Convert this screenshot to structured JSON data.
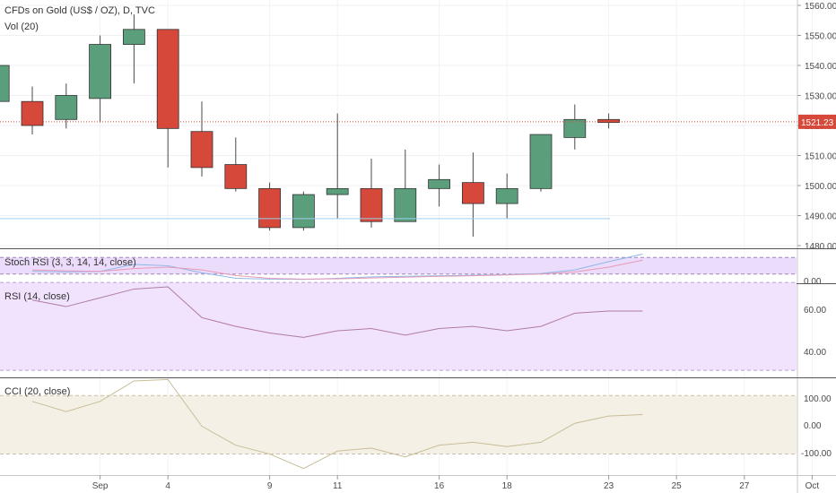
{
  "header": {
    "symbol_line": "CFDs on Gold (US$ / OZ), D, TVC",
    "volume_label": "Vol (20)"
  },
  "colors": {
    "up": "#5a9e7b",
    "down": "#d5483a",
    "stoch_bg": "#ecdcfb",
    "rsi_bg": "#f1e3fd",
    "cci_bg": "#f5f0e6",
    "price_line": "#d5483a",
    "rsi_line": "#b07aa8",
    "cci_line": "#c8bd98",
    "stoch_k": "#8fb8e8",
    "stoch_d": "#e79ab8"
  },
  "chart_data": [
    {
      "type": "candlestick",
      "title": "CFDs on Gold (US$ / OZ), D, TVC",
      "ylim": [
        1480,
        1562
      ],
      "y_ticks": [
        "1560.00",
        "1550.00",
        "1540.00",
        "1530.00",
        "1520.00",
        "1510.00",
        "1500.00",
        "1490.00",
        "1480.00"
      ],
      "last_price_label": "1521.23",
      "last_price": 1521.23,
      "support_level": 1489,
      "x_ticks": [
        {
          "label": "Sep",
          "index": 2
        },
        {
          "label": "4",
          "index": 4
        },
        {
          "label": "9",
          "index": 7
        },
        {
          "label": "11",
          "index": 9
        },
        {
          "label": "16",
          "index": 12
        },
        {
          "label": "18",
          "index": 14
        },
        {
          "label": "23",
          "index": 17
        },
        {
          "label": "25",
          "index": 19
        },
        {
          "label": "27",
          "index": 21
        },
        {
          "label": "Oct",
          "index": 23
        }
      ],
      "candles": [
        {
          "i": -1,
          "o": 1528,
          "h": 1540,
          "l": 1525,
          "c": 1540
        },
        {
          "i": 0,
          "o": 1528,
          "h": 1533,
          "l": 1517,
          "c": 1520
        },
        {
          "i": 1,
          "o": 1522,
          "h": 1534,
          "l": 1519,
          "c": 1530
        },
        {
          "i": 2,
          "o": 1529,
          "h": 1550,
          "l": 1521,
          "c": 1547
        },
        {
          "i": 3,
          "o": 1547,
          "h": 1557,
          "l": 1534,
          "c": 1552
        },
        {
          "i": 4,
          "o": 1552,
          "h": 1552,
          "l": 1506,
          "c": 1519
        },
        {
          "i": 5,
          "o": 1518,
          "h": 1528,
          "l": 1503,
          "c": 1506
        },
        {
          "i": 6,
          "o": 1507,
          "h": 1516,
          "l": 1498,
          "c": 1499
        },
        {
          "i": 7,
          "o": 1499,
          "h": 1501,
          "l": 1485,
          "c": 1486
        },
        {
          "i": 8,
          "o": 1486,
          "h": 1498,
          "l": 1485,
          "c": 1497
        },
        {
          "i": 9,
          "o": 1497,
          "h": 1524,
          "l": 1489,
          "c": 1499
        },
        {
          "i": 10,
          "o": 1499,
          "h": 1509,
          "l": 1486,
          "c": 1488
        },
        {
          "i": 11,
          "o": 1488,
          "h": 1512,
          "l": 1488,
          "c": 1499
        },
        {
          "i": 12,
          "o": 1499,
          "h": 1507,
          "l": 1493,
          "c": 1502
        },
        {
          "i": 13,
          "o": 1501,
          "h": 1511,
          "l": 1483,
          "c": 1494
        },
        {
          "i": 14,
          "o": 1494,
          "h": 1504,
          "l": 1489,
          "c": 1499
        },
        {
          "i": 15,
          "o": 1499,
          "h": 1517,
          "l": 1498,
          "c": 1517
        },
        {
          "i": 16,
          "o": 1516,
          "h": 1527,
          "l": 1512,
          "c": 1522
        },
        {
          "i": 17,
          "o": 1522,
          "h": 1524,
          "l": 1519,
          "c": 1521
        }
      ]
    },
    {
      "type": "line",
      "title": "Stoch RSI (3, 3, 14, 14, close)",
      "ylim": [
        0,
        100
      ],
      "y_ticks": [
        "0.00"
      ],
      "band": [
        20,
        80
      ],
      "series": [
        {
          "values": [
            30,
            28,
            30,
            55,
            50,
            25,
            5,
            2,
            1,
            5,
            10,
            12,
            14,
            16,
            18,
            22,
            35,
            65,
            92
          ]
        },
        {
          "values": [
            35,
            32,
            30,
            40,
            45,
            35,
            15,
            5,
            2,
            3,
            6,
            9,
            12,
            14,
            17,
            20,
            28,
            45,
            70
          ]
        }
      ]
    },
    {
      "type": "line",
      "title": "RSI (14, close)",
      "ylim": [
        28,
        68
      ],
      "y_ticks": [
        "60.00",
        "40.00"
      ],
      "band": [
        30,
        70
      ],
      "series": [
        {
          "values": [
            62,
            59,
            63,
            67,
            68,
            54,
            50,
            47,
            45,
            48,
            49,
            46,
            49,
            50,
            48,
            50,
            56,
            57,
            57
          ]
        }
      ]
    },
    {
      "type": "line",
      "title": "CCI (20, close)",
      "ylim": [
        -160,
        150
      ],
      "y_ticks": [
        "100.00",
        "0.00",
        "-100.00"
      ],
      "band": [
        -100,
        100
      ],
      "series": [
        {
          "values": [
            80,
            45,
            80,
            150,
            155,
            -5,
            -70,
            -100,
            -150,
            -90,
            -80,
            -110,
            -70,
            -60,
            -75,
            -60,
            5,
            30,
            35
          ]
        }
      ]
    }
  ]
}
